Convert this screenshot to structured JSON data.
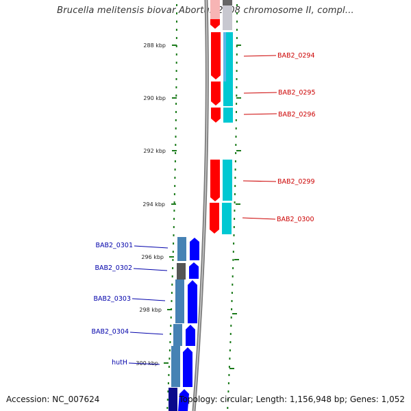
{
  "title": "Brucella melitensis biovar Abortus 2308 chromosome II, compl...",
  "footer": {
    "accession": "Accession: NC_007624",
    "summary": "Topology: circular; Length: 1,156,948 bp; Genes: 1,052"
  },
  "colors": {
    "forward_gene": "#ff0000",
    "forward_cds": "#00c8d2",
    "reverse_gene": "#0000ff",
    "reverse_cds": "#4682b4",
    "label_forward": "#cc0000",
    "label_reverse": "#0000aa",
    "tick": "#1a7a1a",
    "backbone": "#888888"
  },
  "ticks": [
    "288 kbp",
    "290 kbp",
    "292 kbp",
    "294 kbp",
    "296 kbp",
    "298 kbp",
    "300 kbp"
  ],
  "forward_genes": [
    "BAB2_0294",
    "BAB2_0295",
    "BAB2_0296",
    "BAB2_0299",
    "BAB2_0300"
  ],
  "reverse_genes": [
    "BAB2_0301",
    "BAB2_0302",
    "BAB2_0303",
    "BAB2_0304",
    "hutH"
  ]
}
